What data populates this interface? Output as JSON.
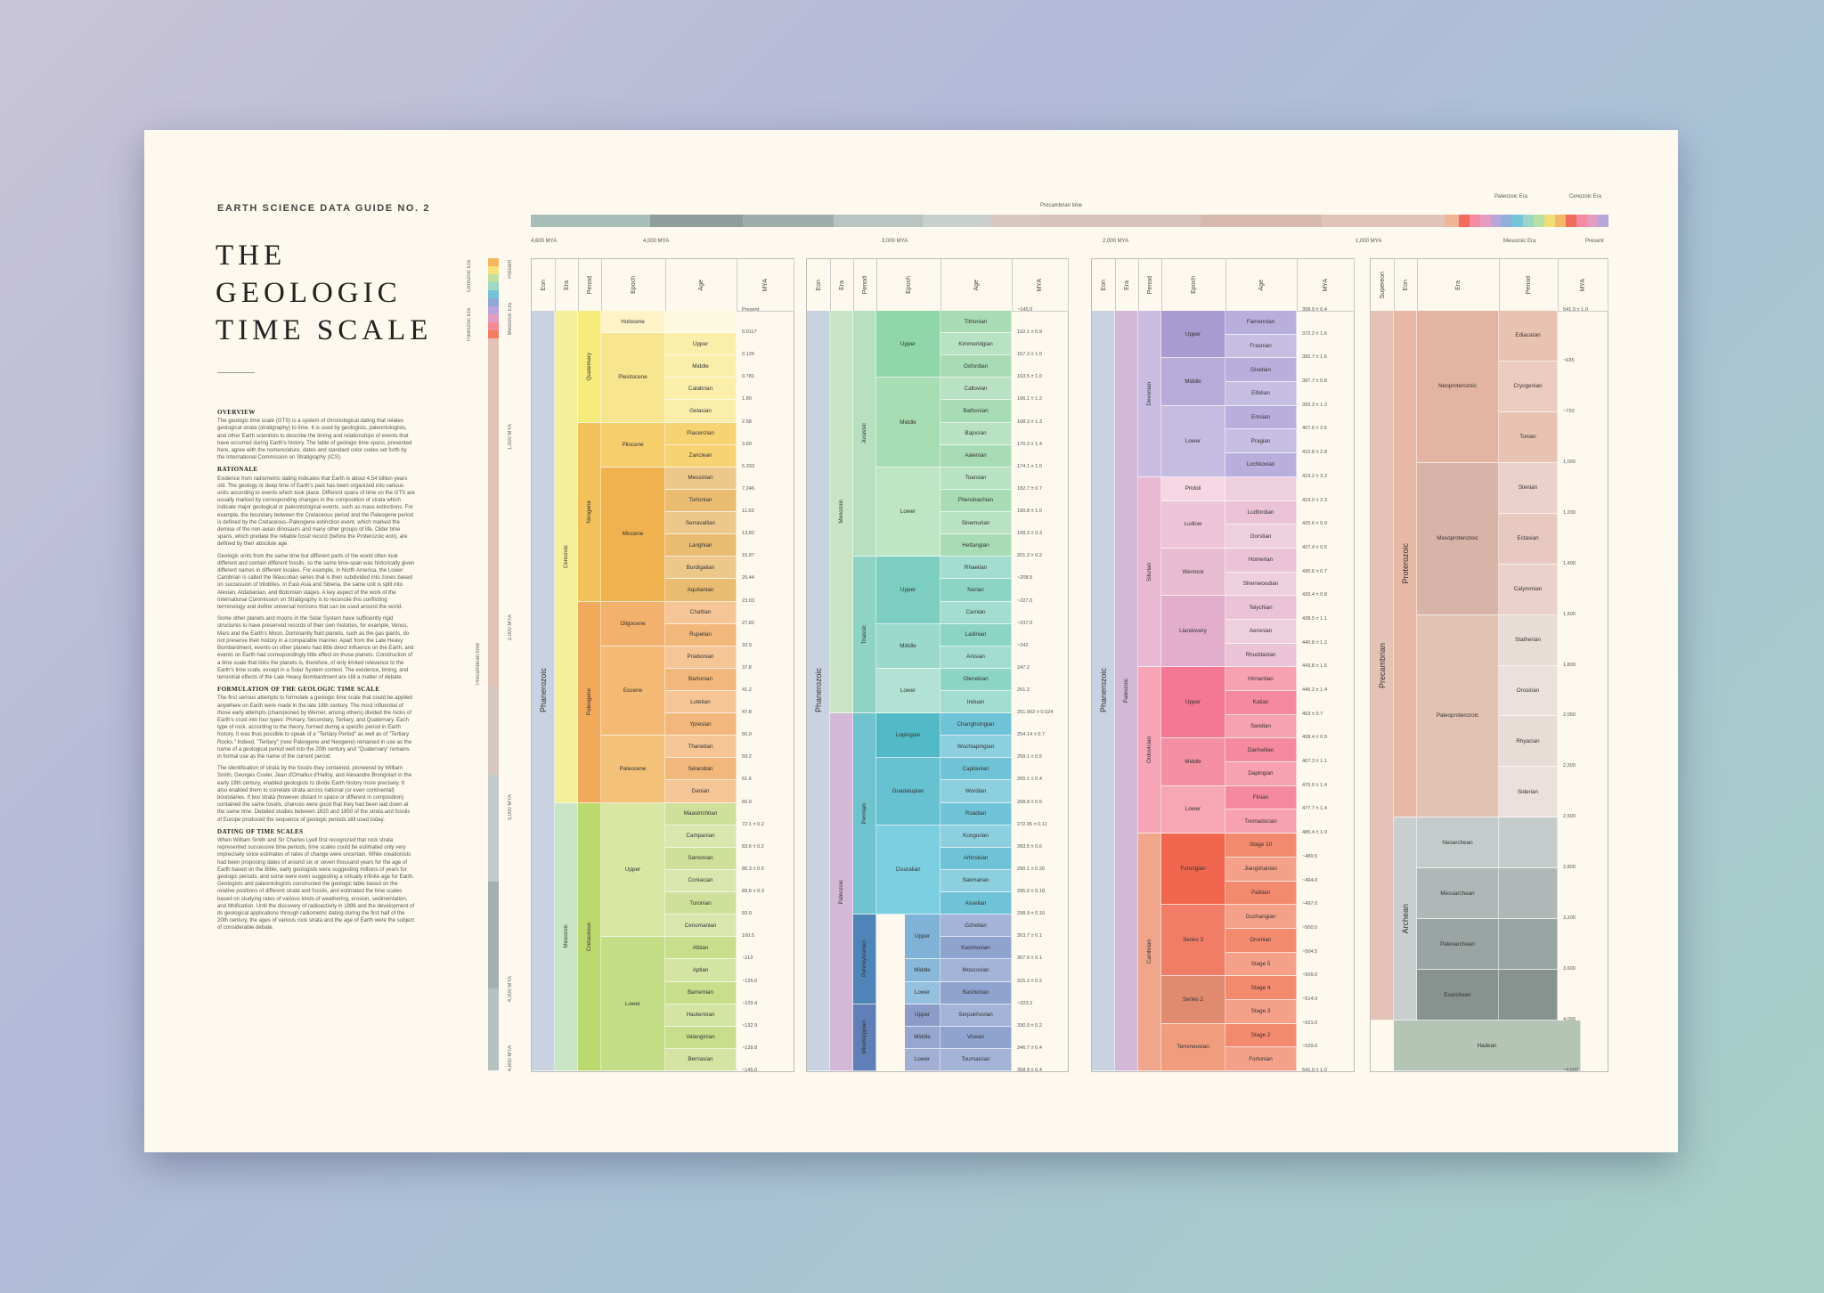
{
  "header": {
    "series": "EARTH SCIENCE DATA GUIDE NO. 2",
    "title_lines": [
      "THE",
      "GEOLOGIC",
      "TIME SCALE"
    ]
  },
  "sections": [
    {
      "heading": "OVERVIEW",
      "paragraphs": [
        "The geologic time scale (GTS) is a system of chronological dating that relates geological strata (stratigraphy) to time. It is used by geologists, paleontologists, and other Earth scientists to describe the timing and relationships of events that have occurred during Earth's history. The table of geologic time spans, presented here, agree with the nomenclature, dates and standard color codes set forth by the International Commission on Stratigraphy (ICS)."
      ]
    },
    {
      "heading": "RATIONALE",
      "paragraphs": [
        "Evidence from radiometric dating indicates that Earth is about 4.54 billion years old. The geology or deep time of Earth's past has been organized into various units according to events which took place. Different spans of time on the GTS are usually marked by corresponding changes in the composition of strata which indicate major geological or paleontological events, such as mass extinctions. For example, the boundary between the Cretaceous period and the Paleogene period is defined by the Cretaceous–Paleogene extinction event, which marked the demise of the non-avian dinosaurs and many other groups of life. Older time spans, which predate the reliable fossil record (before the Proterozoic eon), are defined by their absolute age.",
        "Geologic units from the same time but different parts of the world often look different and contain different fossils, so the same time-span was historically given different names in different locales. For example, in North America, the Lower Cambrian is called the Waucoban series that is then subdivided into zones based on succession of trilobites. In East Asia and Siberia, the same unit is split into Alexian, Atdabanian, and Botomian stages. A key aspect of the work of the International Commission on Stratigraphy is to reconcile this conflicting terminology and define universal horizons that can be used around the world.",
        "Some other planets and moons in the Solar System have sufficiently rigid structures to have preserved records of their own histories, for example, Venus, Mars and the Earth's Moon. Dominantly fluid planets, such as the gas giants, do not preserve their history in a comparable manner. Apart from the Late Heavy Bombardment, events on other planets had little direct influence on the Earth, and events on Earth had correspondingly little effect on those planets. Construction of a time scale that links the planets is, therefore, of only limited relevance to the Earth's time scale, except in a Solar System context. The existence, timing, and terrestrial effects of the Late Heavy Bombardment are still a matter of debate."
      ]
    },
    {
      "heading": "FORMULATION OF THE GEOLOGIC TIME SCALE",
      "paragraphs": [
        "The first serious attempts to formulate a geologic time scale that could be applied anywhere on Earth were made in the late 18th century. The most influential of those early attempts (championed by Werner, among others) divided the rocks of Earth's crust into four types: Primary, Secondary, Tertiary, and Quaternary. Each type of rock, according to the theory, formed during a specific period in Earth history. It was thus possible to speak of a \"Tertiary Period\" as well as of \"Tertiary Rocks.\" Indeed, \"Tertiary\" (now Paleogene and Neogene) remained in use as the name of a geological period well into the 20th century and \"Quaternary\" remains in formal use as the name of the current period.",
        "The identification of strata by the fossils they contained, pioneered by William Smith, Georges Cuvier, Jean d'Omalius d'Halloy, and Alexandre Brongniart in the early 19th century, enabled geologists to divide Earth history more precisely. It also enabled them to correlate strata across national (or even continental) boundaries. If two strata (however distant in space or different in composition) contained the same fossils, chances were good that they had been laid down at the same time. Detailed studies between 1820 and 1850 of the strata and fossils of Europe produced the sequence of geologic periods still used today."
      ]
    },
    {
      "heading": "DATING OF TIME SCALES",
      "paragraphs": [
        "When William Smith and Sir Charles Lyell first recognized that rock strata represented successive time periods, time scales could be estimated only very imprecisely since estimates of rates of change were uncertain. While creationists had been proposing dates of around six or seven thousand years for the age of Earth based on the Bible, early geologists were suggesting millions of years for geologic periods, and some were even suggesting a virtually infinite age for Earth. Geologists and paleontologists constructed the geologic table based on the relative positions of different strata and fossils, and estimated the time scales based on studying rates of various kinds of weathering, erosion, sedimentation, and lithification. Until the discovery of radioactivity in 1896 and the development of its geological applications through radiometric dating during the first half of the 20th century, the ages of various rock strata and the age of Earth were the subject of considerable debate."
      ]
    }
  ],
  "timeline": {
    "top_labels": {
      "precambrian": "Precambrian time",
      "paleozoic": "Paleozoic Era",
      "cenozoic": "Cenozoic Era",
      "mesozoic": "Mesozoic Era",
      "present": "Present"
    },
    "top_ticks": [
      "4,600 MYA",
      "4,000 MYA",
      "3,000 MYA",
      "2,000 MYA",
      "1,000 MYA"
    ],
    "side_labels": {
      "cenozoic": "Cenozoic Era",
      "present": "Present",
      "paleozoic": "Paleozoic Era",
      "mesozoic": "Mesozoic Era",
      "precambrian": "Precambrian time"
    },
    "side_ticks": [
      "1,000 MYA",
      "2,000 MYA",
      "3,000 MYA",
      "4,000 MYA",
      "4,600 MYA"
    ]
  },
  "columns_headers": {
    "c1": [
      "Eon",
      "Era",
      "Period",
      "Epoch",
      "Age",
      "MYA"
    ],
    "c2": [
      "Eon",
      "Era",
      "Period",
      "Epoch",
      "Age",
      "MYA"
    ],
    "c3": [
      "Eon",
      "Era",
      "Period",
      "Epoch",
      "Age",
      "MYA"
    ],
    "c4": [
      "Supereon",
      "Eon",
      "Era",
      "Period",
      "MYA"
    ]
  },
  "col1": {
    "eon": "Phanerozoic",
    "eras": [
      {
        "name": "Cenozoic",
        "n": 22
      },
      {
        "name": "Mesozoic",
        "n": 12
      }
    ],
    "periods": [
      {
        "name": "Quaternary",
        "n": 5
      },
      {
        "name": "Neogene",
        "n": 8
      },
      {
        "name": "Paleogene",
        "n": 9
      },
      {
        "name": "Cretaceous",
        "n": 12
      }
    ],
    "epochs": [
      {
        "name": "Holocene",
        "n": 1
      },
      {
        "name": "Pleistocene",
        "n": 4
      },
      {
        "name": "Pliocene",
        "n": 2
      },
      {
        "name": "Miocene",
        "n": 6
      },
      {
        "name": "Oligocene",
        "n": 2
      },
      {
        "name": "Eocene",
        "n": 4
      },
      {
        "name": "Paleocene",
        "n": 3
      },
      {
        "name": "Upper",
        "n": 6
      },
      {
        "name": "Lower",
        "n": 6
      }
    ],
    "ages": [
      "",
      "Upper",
      "Middle",
      "Calabrian",
      "Gelasian",
      "Piacenzian",
      "Zanclean",
      "Messinian",
      "Tortonian",
      "Serravallian",
      "Langhian",
      "Burdigalian",
      "Aquitanian",
      "Chattian",
      "Rupelian",
      "Priabonian",
      "Bartonian",
      "Lutetian",
      "Ypresian",
      "Thanetian",
      "Selandian",
      "Danian",
      "Maastrichtian",
      "Campanian",
      "Santonian",
      "Coniacian",
      "Turonian",
      "Cenomanian",
      "Albian",
      "Aptian",
      "Barremian",
      "Hauterivian",
      "Valanginian",
      "Berriasian"
    ],
    "mya": [
      "Present",
      "0.0117",
      "0.126",
      "0.781",
      "1.80",
      "2.58",
      "3.60",
      "5.333",
      "7.246",
      "11.63",
      "13.82",
      "15.97",
      "20.44",
      "23.03",
      "27.82",
      "33.9",
      "37.8",
      "41.2",
      "47.8",
      "56.0",
      "59.2",
      "61.6",
      "66.0",
      "72.1 ± 0.2",
      "83.6 ± 0.2",
      "86.3 ± 0.5",
      "89.8 ± 0.3",
      "93.9",
      "100.5",
      "~113",
      "~125.0",
      "~129.4",
      "~132.9",
      "~139.8",
      "~145.0"
    ]
  },
  "col2": {
    "eon": "Phanerozoic",
    "eras": [
      {
        "name": "Mesozoic",
        "n": 18
      },
      {
        "name": "Paleozoic",
        "n": 16
      }
    ],
    "periods": [
      {
        "name": "Jurassic",
        "n": 11
      },
      {
        "name": "Triassic",
        "n": 7
      },
      {
        "name": "Permian",
        "n": 9
      },
      {
        "name": "Carboniferous",
        "n": 7
      }
    ],
    "sub": [
      {
        "name": "Pennsylvanian",
        "n": 4
      },
      {
        "name": "Mississippian",
        "n": 3
      }
    ],
    "epochs": [
      {
        "name": "Upper",
        "n": 3
      },
      {
        "name": "Middle",
        "n": 4
      },
      {
        "name": "Lower",
        "n": 4
      },
      {
        "name": "Upper",
        "n": 3
      },
      {
        "name": "Middle",
        "n": 2
      },
      {
        "name": "Lower",
        "n": 2
      },
      {
        "name": "Lopingian",
        "n": 2
      },
      {
        "name": "Guadalupian",
        "n": 3
      },
      {
        "name": "Cisuralian",
        "n": 4
      },
      {
        "name": "Upper",
        "n": 2
      },
      {
        "name": "Middle",
        "n": 1
      },
      {
        "name": "Lower",
        "n": 1
      },
      {
        "name": "Upper",
        "n": 1
      },
      {
        "name": "Middle",
        "n": 1
      },
      {
        "name": "Lower",
        "n": 1
      }
    ],
    "ages": [
      "Tithonian",
      "Kimmeridgian",
      "Oxfordian",
      "Callovian",
      "Bathonian",
      "Bajocian",
      "Aalenian",
      "Toarcian",
      "Pliensbachian",
      "Sinemurian",
      "Hettangian",
      "Rhaetian",
      "Norian",
      "Carnian",
      "Ladinian",
      "Anisian",
      "Olenekian",
      "Induan",
      "Changhsingian",
      "Wuchiapingian",
      "Capitanian",
      "Wordian",
      "Roadian",
      "Kungurian",
      "Artinskian",
      "Sakmarian",
      "Asselian",
      "Gzhelian",
      "Kasimovian",
      "Moscovian",
      "Bashkirian",
      "Serpukhovian",
      "Visean",
      "Tournaisian"
    ],
    "mya": [
      "~145.0",
      "152.1 ± 0.9",
      "157.3 ± 1.0",
      "163.5 ± 1.0",
      "166.1 ± 1.2",
      "168.3 ± 1.3",
      "170.3 ± 1.4",
      "174.1 ± 1.0",
      "182.7 ± 0.7",
      "190.8 ± 1.0",
      "199.3 ± 0.3",
      "201.3 ± 0.2",
      "~208.5",
      "~227.0",
      "~237.0",
      "~242",
      "247.2",
      "251.2",
      "251.902 ± 0.024",
      "254.14 ± 0.7",
      "259.1 ± 0.5",
      "265.1 ± 0.4",
      "268.8 ± 0.5",
      "272.95 ± 0.11",
      "283.5 ± 0.6",
      "290.1 ± 0.26",
      "295.0 ± 0.18",
      "298.9 ± 0.15",
      "303.7 ± 0.1",
      "307.0 ± 0.1",
      "315.2 ± 0.2",
      "~323.2",
      "330.9 ± 0.2",
      "346.7 ± 0.4",
      "358.9 ± 0.4"
    ]
  },
  "col3": {
    "eon": "Phanerozoic",
    "era": "Paleozoic",
    "periods": [
      {
        "name": "Devonian",
        "n": 7
      },
      {
        "name": "Silurian",
        "n": 8
      },
      {
        "name": "Ordovician",
        "n": 7
      },
      {
        "name": "Cambrian",
        "n": 10
      }
    ],
    "epochs": [
      {
        "name": "Upper",
        "n": 2
      },
      {
        "name": "Middle",
        "n": 2
      },
      {
        "name": "Lower",
        "n": 3
      },
      {
        "name": "Pridoli",
        "n": 1
      },
      {
        "name": "Ludlow",
        "n": 2
      },
      {
        "name": "Wenlock",
        "n": 2
      },
      {
        "name": "Llandovery",
        "n": 3
      },
      {
        "name": "Upper",
        "n": 3
      },
      {
        "name": "Middle",
        "n": 2
      },
      {
        "name": "Lower",
        "n": 2
      },
      {
        "name": "Furongian",
        "n": 3
      },
      {
        "name": "Series 3",
        "n": 3
      },
      {
        "name": "Series 2",
        "n": 2
      },
      {
        "name": "Terreneuvian",
        "n": 2
      }
    ],
    "ages": [
      "Famennian",
      "Frasnian",
      "Givetian",
      "Eifelian",
      "Emsian",
      "Pragian",
      "Lochkovian",
      "",
      "Ludfordian",
      "Gorstian",
      "Homerian",
      "Sheinwoodian",
      "Telychian",
      "Aeronian",
      "Rhuddanian",
      "Hirnantian",
      "Katian",
      "Sandian",
      "Darriwilian",
      "Dapingian",
      "Floian",
      "Tremadocian",
      "Stage 10",
      "Jiangshanian",
      "Paibian",
      "Guzhangian",
      "Drumian",
      "Stage 5",
      "Stage 4",
      "Stage 3",
      "Stage 2",
      "Fortunian"
    ],
    "mya": [
      "358.9 ± 0.4",
      "372.2 ± 1.6",
      "382.7 ± 1.6",
      "387.7 ± 0.8",
      "393.3 ± 1.2",
      "407.6 ± 2.6",
      "410.8 ± 2.8",
      "419.2 ± 3.2",
      "423.0 ± 2.3",
      "425.6 ± 0.9",
      "427.4 ± 0.5",
      "430.5 ± 0.7",
      "433.4 ± 0.8",
      "438.5 ± 1.1",
      "440.8 ± 1.2",
      "443.8 ± 1.5",
      "445.2 ± 1.4",
      "453 ± 0.7",
      "458.4 ± 0.9",
      "467.3 ± 1.1",
      "470.0 ± 1.4",
      "477.7 ± 1.4",
      "485.4 ± 1.9",
      "~489.5",
      "~494.0",
      "~497.0",
      "~500.5",
      "~504.5",
      "~509.0",
      "~514.0",
      "~521.0",
      "~529.0",
      "541.0 ± 1.0"
    ]
  },
  "col4": {
    "supereon": "Precambrian",
    "eons": [
      {
        "name": "Proterozoic",
        "n": 10
      },
      {
        "name": "Archean",
        "n": 4
      }
    ],
    "eras": [
      {
        "name": "Neoproterozoic",
        "n": 3
      },
      {
        "name": "Mesoproterozoic",
        "n": 3
      },
      {
        "name": "Paleoproterozoic",
        "n": 4
      },
      {
        "name": "Neoarchean",
        "n": 1
      },
      {
        "name": "Mesoarchean",
        "n": 1
      },
      {
        "name": "Paleoarchean",
        "n": 1
      },
      {
        "name": "Eoarchean",
        "n": 1
      }
    ],
    "hadean": "Hadean",
    "periods": [
      "Ediacaran",
      "Cryogenian",
      "Tonian",
      "Stenian",
      "Ectasian",
      "Calymmian",
      "Statherian",
      "Orosirian",
      "Rhyacian",
      "Siderian"
    ],
    "mya": [
      "541.0 ± 1.0",
      "~635",
      "~720",
      "1,000",
      "1,200",
      "1,400",
      "1,600",
      "1,800",
      "2,050",
      "2,300",
      "2,500",
      "2,800",
      "3,200",
      "3,600",
      "4,000",
      "~4,600"
    ]
  }
}
